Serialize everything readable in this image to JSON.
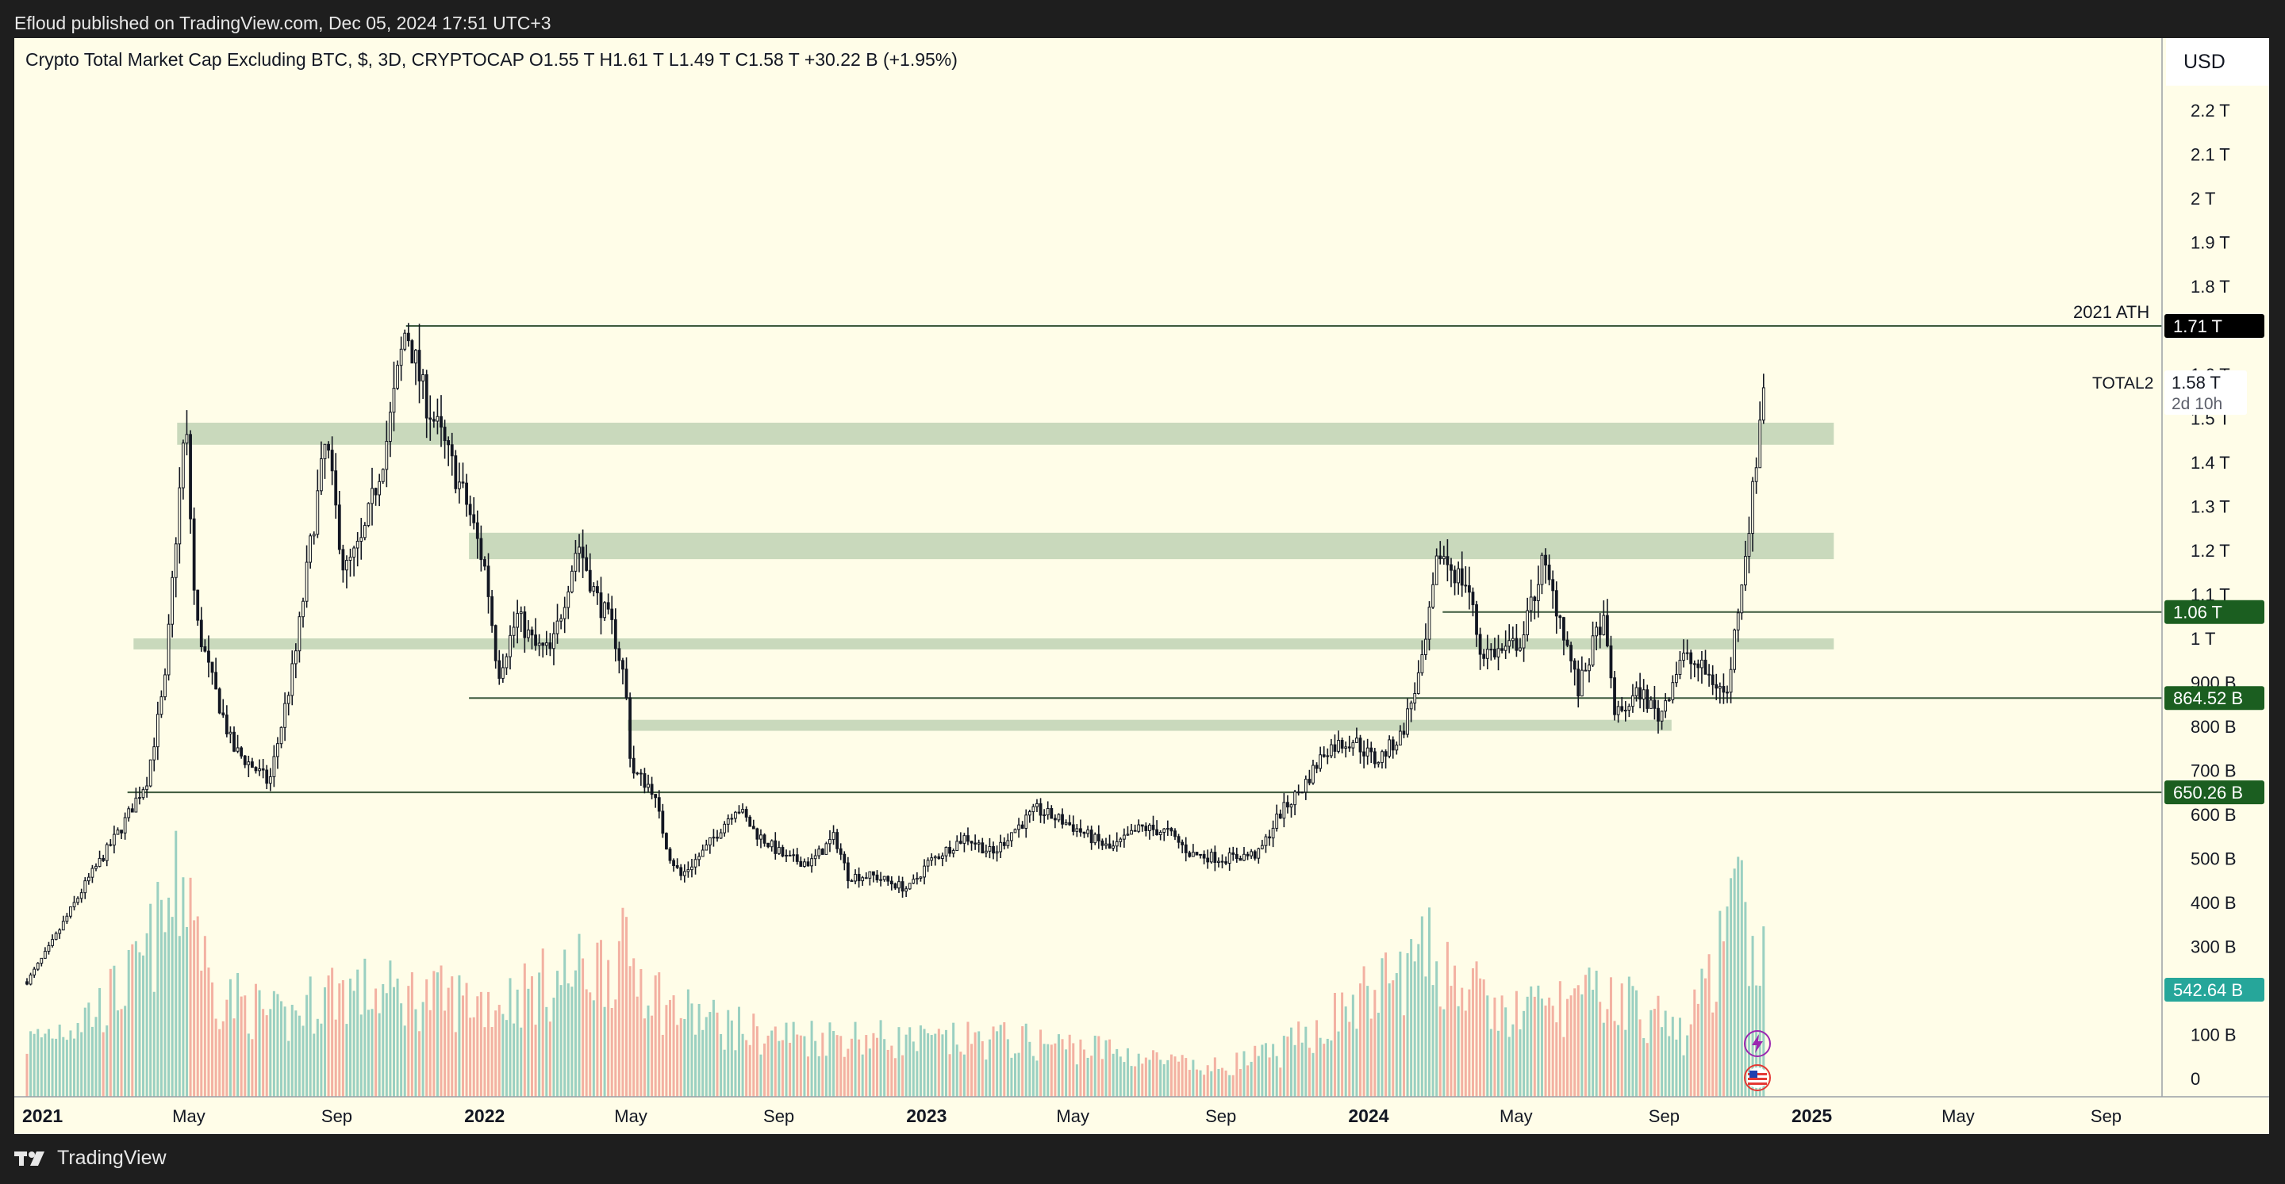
{
  "credit": "Efloud published on TradingView.com, Dec 05, 2024 17:51 UTC+3",
  "footer": {
    "brand": "TradingView",
    "logo_icon": "tradingview-logo-icon"
  },
  "currency": "USD",
  "legend": "Crypto Total Market Cap Excluding BTC, $, 3D, CRYPTOCAP  O1.55 T  H1.61 T  L1.49 T  C1.58 T  +30.22 B (+1.95%)",
  "colors": {
    "background": "#fffde8",
    "candle": "#131722",
    "zone": "#c9d9bc",
    "hline": "#3d5a3d",
    "vol_up": "#8fcbbd",
    "vol_down": "#f2a99a",
    "tag_green": "#1b5e20",
    "tag_black": "#000000",
    "tag_teal": "#26a69a"
  },
  "chart_data": {
    "type": "candlestick",
    "title": "Crypto Total Market Cap Excluding BTC",
    "timeframe": "3D",
    "symbol": "TOTAL2",
    "x_ticks": [
      {
        "label": "2021",
        "date": "2021-01-01",
        "bold": true
      },
      {
        "label": "May",
        "date": "2021-05-01",
        "bold": false
      },
      {
        "label": "Sep",
        "date": "2021-09-01",
        "bold": false
      },
      {
        "label": "2022",
        "date": "2022-01-01",
        "bold": true
      },
      {
        "label": "May",
        "date": "2022-05-01",
        "bold": false
      },
      {
        "label": "Sep",
        "date": "2022-09-01",
        "bold": false
      },
      {
        "label": "2023",
        "date": "2023-01-01",
        "bold": true
      },
      {
        "label": "May",
        "date": "2023-05-01",
        "bold": false
      },
      {
        "label": "Sep",
        "date": "2023-09-01",
        "bold": false
      },
      {
        "label": "2024",
        "date": "2024-01-01",
        "bold": true
      },
      {
        "label": "May",
        "date": "2024-05-01",
        "bold": false
      },
      {
        "label": "Sep",
        "date": "2024-09-01",
        "bold": false
      },
      {
        "label": "2025",
        "date": "2025-01-01",
        "bold": true
      },
      {
        "label": "May",
        "date": "2025-05-01",
        "bold": false
      },
      {
        "label": "Sep",
        "date": "2025-09-01",
        "bold": false
      }
    ],
    "y_ticks": [
      {
        "label": "2.2 T",
        "value": 2.2
      },
      {
        "label": "2.1 T",
        "value": 2.1
      },
      {
        "label": "2 T",
        "value": 2.0
      },
      {
        "label": "1.9 T",
        "value": 1.9
      },
      {
        "label": "1.8 T",
        "value": 1.8
      },
      {
        "label": "1.4 T",
        "value": 1.4
      },
      {
        "label": "1.3 T",
        "value": 1.3
      },
      {
        "label": "1.2 T",
        "value": 1.2
      },
      {
        "label": "1 T",
        "value": 1.0
      },
      {
        "label": "800 B",
        "value": 0.8
      },
      {
        "label": "700 B",
        "value": 0.7
      },
      {
        "label": "600 B",
        "value": 0.6
      },
      {
        "label": "500 B",
        "value": 0.5
      },
      {
        "label": "400 B",
        "value": 0.4
      },
      {
        "label": "300 B",
        "value": 0.3
      },
      {
        "label": "100 B",
        "value": 0.1
      },
      {
        "label": "0",
        "value": 0.0
      }
    ],
    "y_ticks_partial": [
      {
        "label": "1.6 T",
        "value": 1.6
      },
      {
        "label": "1.5 T",
        "value": 1.5
      },
      {
        "label": "1.1 T",
        "value": 1.1
      },
      {
        "label": "900 B",
        "value": 0.9
      }
    ],
    "y_unit": "T",
    "price_path": [
      [
        "2021-01-01",
        0.22
      ],
      [
        "2021-01-20",
        0.3
      ],
      [
        "2021-02-20",
        0.45
      ],
      [
        "2021-03-20",
        0.57
      ],
      [
        "2021-04-10",
        0.68
      ],
      [
        "2021-04-25",
        0.9
      ],
      [
        "2021-05-03",
        1.2
      ],
      [
        "2021-05-12",
        1.5
      ],
      [
        "2021-05-20",
        1.05
      ],
      [
        "2021-06-01",
        0.92
      ],
      [
        "2021-06-20",
        0.75
      ],
      [
        "2021-07-10",
        0.7
      ],
      [
        "2021-07-20",
        0.67
      ],
      [
        "2021-08-10",
        0.95
      ],
      [
        "2021-08-25",
        1.25
      ],
      [
        "2021-09-05",
        1.45
      ],
      [
        "2021-09-20",
        1.15
      ],
      [
        "2021-10-05",
        1.22
      ],
      [
        "2021-10-25",
        1.45
      ],
      [
        "2021-11-10",
        1.71
      ],
      [
        "2021-11-25",
        1.55
      ],
      [
        "2021-12-10",
        1.45
      ],
      [
        "2021-12-31",
        1.3
      ],
      [
        "2022-01-15",
        1.15
      ],
      [
        "2022-01-25",
        0.92
      ],
      [
        "2022-02-10",
        1.05
      ],
      [
        "2022-02-25",
        0.98
      ],
      [
        "2022-03-10",
        0.97
      ],
      [
        "2022-04-01",
        1.22
      ],
      [
        "2022-04-15",
        1.1
      ],
      [
        "2022-04-30",
        1.02
      ],
      [
        "2022-05-10",
        0.9
      ],
      [
        "2022-05-15",
        0.7
      ],
      [
        "2022-06-01",
        0.66
      ],
      [
        "2022-06-15",
        0.51
      ],
      [
        "2022-06-25",
        0.46
      ],
      [
        "2022-07-15",
        0.52
      ],
      [
        "2022-08-10",
        0.62
      ],
      [
        "2022-08-25",
        0.56
      ],
      [
        "2022-09-20",
        0.5
      ],
      [
        "2022-10-10",
        0.49
      ],
      [
        "2022-10-30",
        0.55
      ],
      [
        "2022-11-10",
        0.46
      ],
      [
        "2022-12-01",
        0.46
      ],
      [
        "2022-12-30",
        0.43
      ],
      [
        "2023-01-15",
        0.49
      ],
      [
        "2023-02-15",
        0.55
      ],
      [
        "2023-03-10",
        0.51
      ],
      [
        "2023-03-25",
        0.56
      ],
      [
        "2023-04-15",
        0.61
      ],
      [
        "2023-05-10",
        0.58
      ],
      [
        "2023-06-15",
        0.52
      ],
      [
        "2023-07-10",
        0.57
      ],
      [
        "2023-08-01",
        0.56
      ],
      [
        "2023-08-20",
        0.51
      ],
      [
        "2023-09-15",
        0.5
      ],
      [
        "2023-10-15",
        0.51
      ],
      [
        "2023-11-01",
        0.6
      ],
      [
        "2023-11-20",
        0.66
      ],
      [
        "2023-12-10",
        0.75
      ],
      [
        "2024-01-01",
        0.77
      ],
      [
        "2024-01-20",
        0.72
      ],
      [
        "2024-02-10",
        0.78
      ],
      [
        "2024-02-28",
        0.95
      ],
      [
        "2024-03-12",
        1.2
      ],
      [
        "2024-03-25",
        1.15
      ],
      [
        "2024-04-05",
        1.12
      ],
      [
        "2024-04-15",
        0.97
      ],
      [
        "2024-05-05",
        0.97
      ],
      [
        "2024-05-20",
        1.0
      ],
      [
        "2024-06-05",
        1.17
      ],
      [
        "2024-06-20",
        1.05
      ],
      [
        "2024-07-05",
        0.88
      ],
      [
        "2024-07-25",
        1.05
      ],
      [
        "2024-08-05",
        0.82
      ],
      [
        "2024-08-25",
        0.88
      ],
      [
        "2024-09-10",
        0.82
      ],
      [
        "2024-09-28",
        0.96
      ],
      [
        "2024-10-15",
        0.93
      ],
      [
        "2024-11-05",
        0.87
      ],
      [
        "2024-11-15",
        1.1
      ],
      [
        "2024-11-25",
        1.3
      ],
      [
        "2024-12-05",
        1.58
      ]
    ],
    "volume_profile": [
      [
        "2021-01-01",
        80
      ],
      [
        "2021-03-01",
        130
      ],
      [
        "2021-04-01",
        180
      ],
      [
        "2021-05-15",
        330
      ],
      [
        "2021-06-01",
        160
      ],
      [
        "2021-08-01",
        110
      ],
      [
        "2021-09-10",
        160
      ],
      [
        "2021-11-10",
        150
      ],
      [
        "2022-01-25",
        140
      ],
      [
        "2022-05-12",
        210
      ],
      [
        "2022-06-15",
        130
      ],
      [
        "2022-09-01",
        90
      ],
      [
        "2022-11-10",
        90
      ],
      [
        "2023-01-15",
        80
      ],
      [
        "2023-03-15",
        85
      ],
      [
        "2023-06-10",
        70
      ],
      [
        "2023-09-01",
        40
      ],
      [
        "2023-11-01",
        65
      ],
      [
        "2024-03-05",
        210
      ],
      [
        "2024-05-01",
        120
      ],
      [
        "2024-08-05",
        150
      ],
      [
        "2024-10-01",
        90
      ],
      [
        "2024-11-15",
        280
      ],
      [
        "2024-12-05",
        200
      ]
    ],
    "zones": [
      {
        "start": "2021-05-05",
        "end": "2025-02-01",
        "low": 1.44,
        "high": 1.49
      },
      {
        "start": "2022-01-01",
        "end": "2025-02-01",
        "low": 1.18,
        "high": 1.24
      },
      {
        "start": "2021-03-30",
        "end": "2025-02-01",
        "low": 0.975,
        "high": 1.0
      },
      {
        "start": "2022-05-12",
        "end": "2024-09-20",
        "low": 0.79,
        "high": 0.815
      }
    ],
    "hlines": [
      {
        "start": "2021-11-10",
        "price": 1.71,
        "tag": "1.71 T",
        "tag_color": "#000000",
        "note": "2021 ATH"
      },
      {
        "start": "2024-03-15",
        "price": 1.06,
        "tag": "1.06 T",
        "tag_color": "#1b5e20",
        "note": ""
      },
      {
        "start": "2022-01-01",
        "price": 0.86452,
        "tag": "864.52 B",
        "tag_color": "#1b5e20",
        "note": ""
      },
      {
        "start": "2021-03-25",
        "price": 0.65026,
        "tag": "650.26 B",
        "tag_color": "#1b5e20",
        "note": ""
      }
    ],
    "current_price": {
      "symbol": "TOTAL2",
      "label": "1.58 T",
      "countdown": "2d 10h",
      "value": 1.58
    },
    "volume_tag": {
      "label": "542.64 B",
      "value": 0.54264
    },
    "icons": [
      "lightning-icon",
      "us-flag-icon"
    ]
  }
}
